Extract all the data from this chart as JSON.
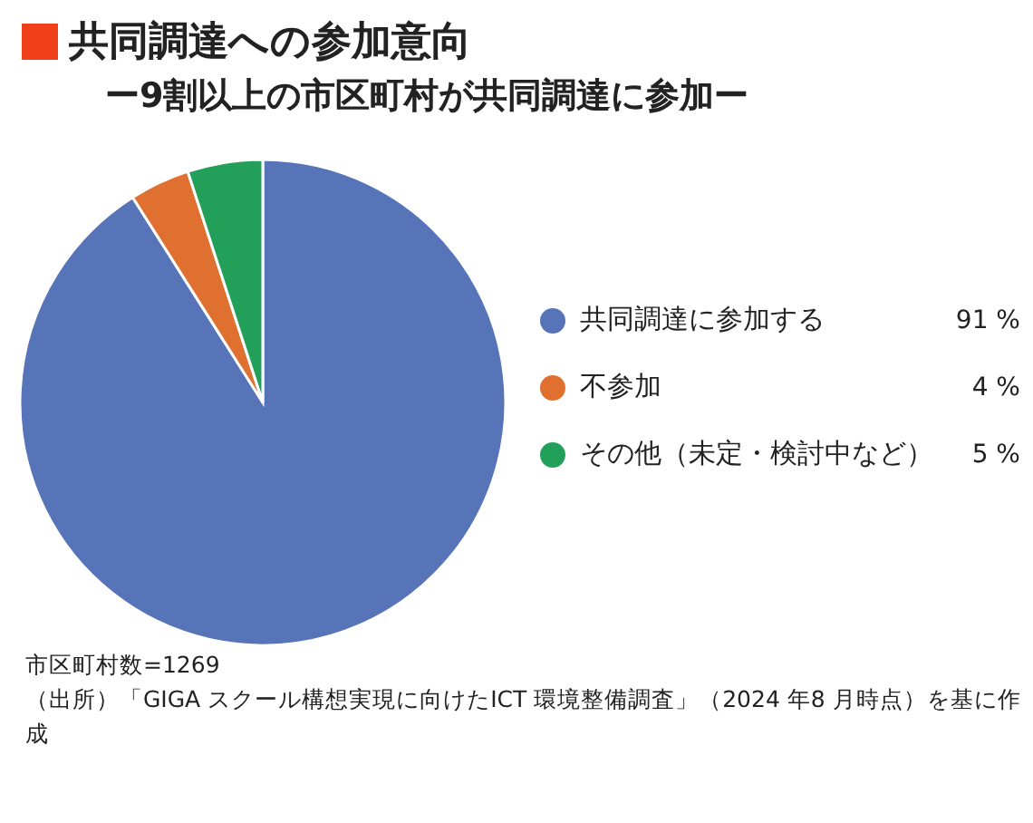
{
  "chart_data": {
    "type": "pie",
    "title": "共同調達への参加意向",
    "subtitle": "ー9割以上の市区町村が共同調達に参加ー",
    "categories": [
      "共同調達に参加する",
      "不参加",
      "その他（未定・検討中など）"
    ],
    "values": [
      91,
      4,
      5
    ],
    "value_labels": [
      "91 %",
      "4 %",
      "5 %"
    ],
    "colors": [
      "#5874b9",
      "#e07030",
      "#22a05a"
    ],
    "legend": "right",
    "annotations": [
      "市区町村数=1269",
      "（出所）「GIGA スクール構想実現に向けたICT 環境整備調査」（2024 年8 月時点）を基に作成"
    ]
  }
}
